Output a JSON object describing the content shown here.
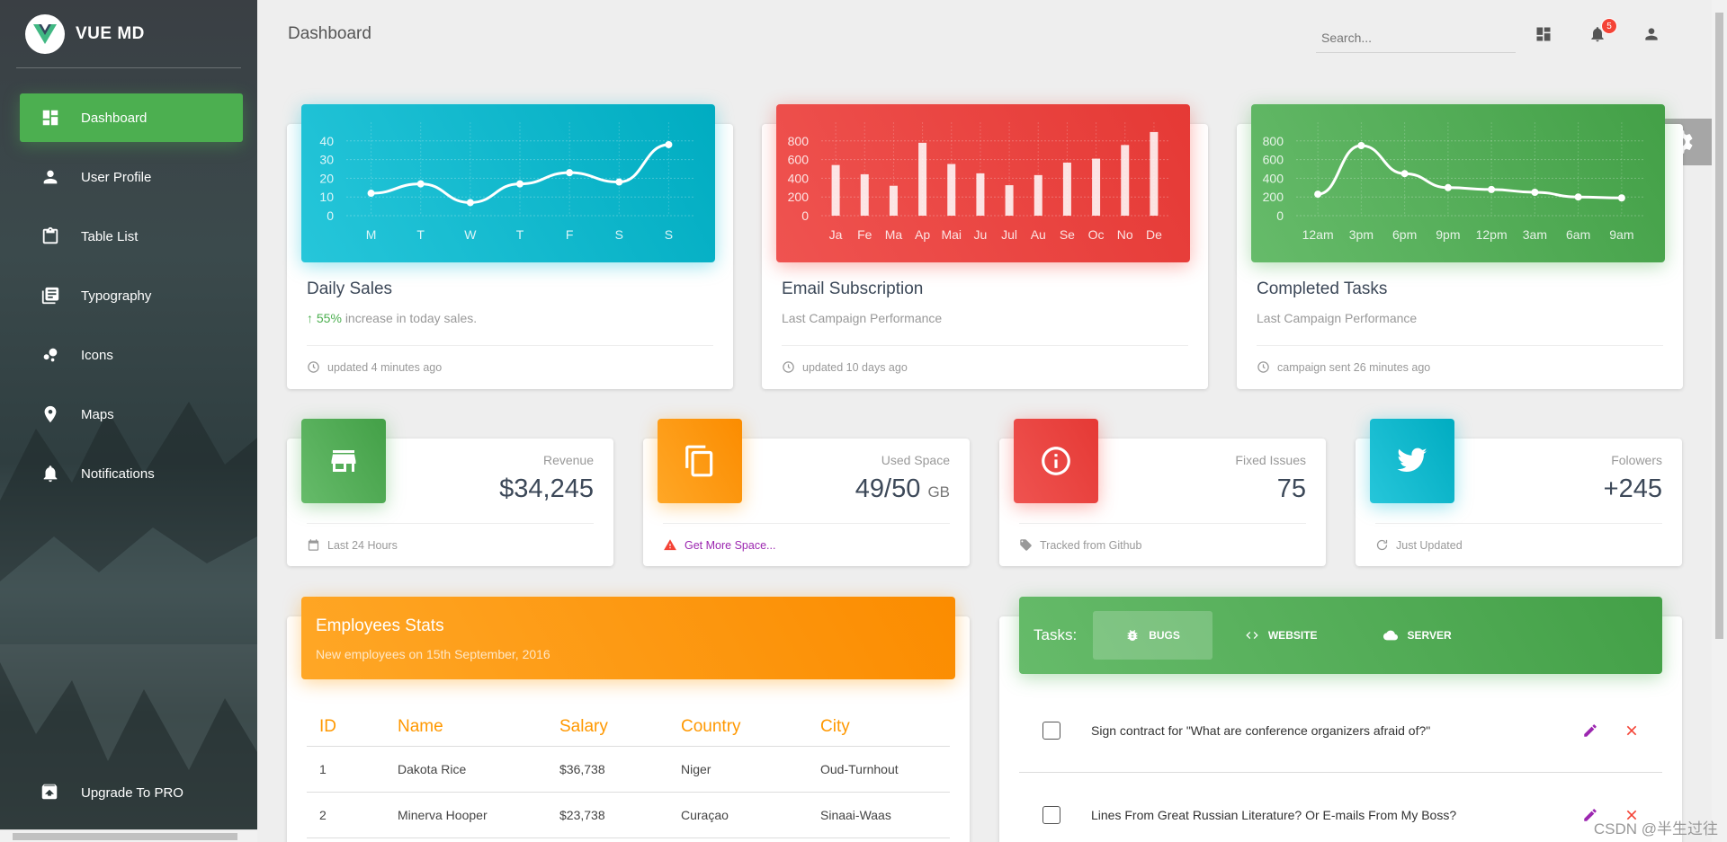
{
  "brand": {
    "title": "VUE MD"
  },
  "sidebar": {
    "items": [
      {
        "label": "Dashboard",
        "icon": "dashboard-icon",
        "active": true
      },
      {
        "label": "User Profile",
        "icon": "person-icon"
      },
      {
        "label": "Table List",
        "icon": "clipboard-icon"
      },
      {
        "label": "Typography",
        "icon": "library-books-icon"
      },
      {
        "label": "Icons",
        "icon": "bubble-chart-icon"
      },
      {
        "label": "Maps",
        "icon": "location-pin-icon"
      },
      {
        "label": "Notifications",
        "icon": "bell-icon"
      }
    ],
    "upgrade": "Upgrade To PRO"
  },
  "header": {
    "title": "Dashboard",
    "search_placeholder": "Search...",
    "notification_count": "5"
  },
  "cards": {
    "daily_sales": {
      "title": "Daily Sales",
      "highlight": "55%",
      "category": "increase in today sales.",
      "footer": "updated 4 minutes ago"
    },
    "email": {
      "title": "Email Subscription",
      "category": "Last Campaign Performance",
      "footer": "updated 10 days ago"
    },
    "tasks_chart": {
      "title": "Completed Tasks",
      "category": "Last Campaign Performance",
      "footer": "campaign sent 26 minutes ago"
    }
  },
  "chart_data": [
    {
      "type": "line",
      "categories": [
        "M",
        "T",
        "W",
        "T",
        "F",
        "S",
        "S"
      ],
      "values": [
        12,
        17,
        7,
        17,
        23,
        18,
        38
      ],
      "yticks": [
        "0",
        "10",
        "20",
        "30",
        "40"
      ],
      "ylim": [
        0,
        50
      ],
      "color": "#00bcd4"
    },
    {
      "type": "bar",
      "categories": [
        "Ja",
        "Fe",
        "Ma",
        "Ap",
        "Mai",
        "Ju",
        "Jul",
        "Au",
        "Se",
        "Oc",
        "No",
        "De"
      ],
      "values": [
        542,
        443,
        320,
        780,
        553,
        453,
        326,
        434,
        568,
        610,
        756,
        895
      ],
      "yticks": [
        "0",
        "200",
        "400",
        "600",
        "800"
      ],
      "ylim": [
        0,
        1000
      ],
      "color": "#f44336"
    },
    {
      "type": "line",
      "categories": [
        "12am",
        "3pm",
        "6pm",
        "9pm",
        "12pm",
        "3am",
        "6am",
        "9am"
      ],
      "values": [
        230,
        750,
        450,
        300,
        280,
        250,
        200,
        190
      ],
      "yticks": [
        "0",
        "200",
        "400",
        "600",
        "800"
      ],
      "ylim": [
        0,
        1000
      ],
      "color": "#4caf50"
    }
  ],
  "stats": [
    {
      "category": "Revenue",
      "value": "$34,245",
      "unit": "",
      "footer": "Last 24 Hours",
      "icon": "store-icon",
      "footer_icon": "calendar-icon",
      "color": "#4caf50"
    },
    {
      "category": "Used Space",
      "value": "49/50",
      "unit": "GB",
      "footer": "Get More Space...",
      "icon": "content-copy-icon",
      "footer_icon": "warning-icon",
      "color": "#ff9800"
    },
    {
      "category": "Fixed Issues",
      "value": "75",
      "unit": "",
      "footer": "Tracked from Github",
      "icon": "info-outline-icon",
      "footer_icon": "tag-icon",
      "color": "#f44336"
    },
    {
      "category": "Folowers",
      "value": "+245",
      "unit": "",
      "footer": "Just Updated",
      "icon": "twitter-icon",
      "footer_icon": "update-icon",
      "color": "#00bcd4"
    }
  ],
  "employees": {
    "title": "Employees Stats",
    "subtitle": "New employees on 15th September, 2016",
    "columns": [
      "ID",
      "Name",
      "Salary",
      "Country",
      "City"
    ],
    "rows": [
      [
        "1",
        "Dakota Rice",
        "$36,738",
        "Niger",
        "Oud-Turnhout"
      ],
      [
        "2",
        "Minerva Hooper",
        "$23,738",
        "Curaçao",
        "Sinaai-Waas"
      ]
    ]
  },
  "tasks": {
    "label": "Tasks:",
    "tabs": [
      {
        "label": "BUGS",
        "icon": "bug-icon",
        "active": true
      },
      {
        "label": "WEBSITE",
        "icon": "code-icon"
      },
      {
        "label": "SERVER",
        "icon": "cloud-icon"
      }
    ],
    "items": [
      "Sign contract for \"What are conference organizers afraid of?\"",
      "Lines From Great Russian Literature? Or E-mails From My Boss?"
    ]
  },
  "watermark": "CSDN @半生过往"
}
